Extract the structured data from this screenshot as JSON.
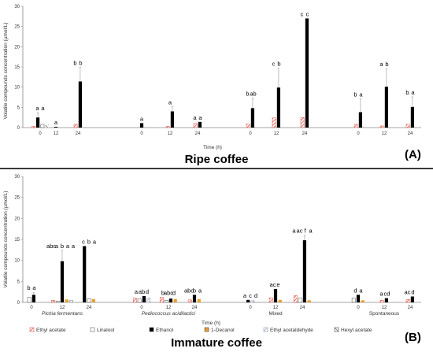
{
  "chart_data": [
    {
      "type": "bar",
      "panel_label": "(A)",
      "title": "Ripe coffee",
      "ylabel": "Volatile compounds concentration (µmol/L)",
      "xlabel": "Time (h)",
      "ylim": [
        0,
        30
      ],
      "yticks": [
        "0",
        "5",
        "10",
        "15",
        "20",
        "25",
        "30"
      ],
      "groups": [
        {
          "name": "",
          "times": [
            {
              "time": "0",
              "bars": [
                {
                  "compound": "Ethyl acetate",
                  "value": 0.3
                },
                {
                  "compound": "Ethanol",
                  "value": 2.5,
                  "err": 1.2
                },
                {
                  "compound": "Linalool",
                  "value": 0.8
                },
                {
                  "compound": "Hexyl acetate",
                  "value": 0.7
                }
              ],
              "letters": [
                "a",
                "a"
              ]
            },
            {
              "time": "12",
              "bars": [
                {
                  "compound": "Ethanol",
                  "value": 0.2
                }
              ],
              "letters": [
                "a"
              ]
            },
            {
              "time": "24",
              "bars": [
                {
                  "compound": "Ethyl acetate",
                  "value": 0.8
                },
                {
                  "compound": "Ethanol",
                  "value": 11.4,
                  "err": 3.5
                }
              ],
              "letters": [
                "b",
                "b"
              ]
            }
          ]
        },
        {
          "name": "",
          "times": [
            {
              "time": "0",
              "bars": [
                {
                  "compound": "Ethanol",
                  "value": 1.1
                }
              ],
              "letters": [
                "a"
              ]
            },
            {
              "time": "12",
              "bars": [
                {
                  "compound": "Ethyl acetate",
                  "value": 0.3
                },
                {
                  "compound": "Ethanol",
                  "value": 4.0,
                  "err": 1.2
                }
              ],
              "letters": [
                "a"
              ]
            },
            {
              "time": "24",
              "bars": [
                {
                  "compound": "Ethyl acetate",
                  "value": 1.0
                },
                {
                  "compound": "Ethanol",
                  "value": 1.4
                }
              ],
              "letters": [
                "a",
                "a"
              ]
            }
          ]
        },
        {
          "name": "",
          "times": [
            {
              "time": "0",
              "bars": [
                {
                  "compound": "Ethyl acetate",
                  "value": 0.9
                },
                {
                  "compound": "Ethanol",
                  "value": 4.8,
                  "err": 2.5
                }
              ],
              "letters": [
                "b",
                "ab"
              ]
            },
            {
              "time": "12",
              "bars": [
                {
                  "compound": "Ethyl acetate",
                  "value": 2.4
                },
                {
                  "compound": "Ethanol",
                  "value": 9.9,
                  "err": 4.8
                }
              ],
              "letters": [
                "c",
                "b"
              ]
            },
            {
              "time": "24",
              "bars": [
                {
                  "compound": "Ethyl acetate",
                  "value": 2.5
                },
                {
                  "compound": "Ethanol",
                  "value": 27.0
                }
              ],
              "letters": [
                "c",
                "c"
              ]
            }
          ]
        },
        {
          "name": "",
          "times": [
            {
              "time": "0",
              "bars": [
                {
                  "compound": "Ethyl acetate",
                  "value": 0.8
                },
                {
                  "compound": "Ethanol",
                  "value": 3.8,
                  "err": 3.3
                }
              ],
              "letters": [
                "b",
                "a"
              ]
            },
            {
              "time": "12",
              "bars": [
                {
                  "compound": "Ethyl acetate",
                  "value": 0.4
                },
                {
                  "compound": "Ethanol",
                  "value": 10.1,
                  "err": 4.5
                }
              ],
              "letters": [
                "a",
                "b"
              ]
            },
            {
              "time": "24",
              "bars": [
                {
                  "compound": "Ethyl acetate",
                  "value": 0.8
                },
                {
                  "compound": "Ethanol",
                  "value": 5.1,
                  "err": 2.5
                }
              ],
              "letters": [
                "b",
                "a"
              ]
            }
          ]
        }
      ]
    },
    {
      "type": "bar",
      "panel_label": "(B)",
      "title": "Immature coffee",
      "ylabel": "Volatile compounds concentration (µmol/L)",
      "xlabel": "Time (h)",
      "ylim": [
        0,
        30
      ],
      "yticks": [
        "0",
        "5",
        "10",
        "15",
        "20",
        "25",
        "30"
      ],
      "groups": [
        {
          "name": "Pichia fermentans",
          "times": [
            {
              "time": "0",
              "bars": [
                {
                  "compound": "Linalool",
                  "value": 1.2
                },
                {
                  "compound": "Ethanol",
                  "value": 1.8,
                  "err": 0.6
                }
              ],
              "letters": [
                "b",
                "a"
              ]
            },
            {
              "time": "12",
              "bars": [
                {
                  "compound": "Ethyl acetate",
                  "value": 0.5
                },
                {
                  "compound": "Linalool",
                  "value": 0.3
                },
                {
                  "compound": "Ethanol",
                  "value": 9.8,
                  "err": 2.6
                },
                {
                  "compound": "1-Decanol",
                  "value": 0.7
                },
                {
                  "compound": "Ethyl acetaldehyde",
                  "value": 0.5
                }
              ],
              "letters": [
                "abc",
                "a",
                "b",
                "a",
                "a"
              ]
            },
            {
              "time": "24",
              "bars": [
                {
                  "compound": "Ethanol",
                  "value": 13.4
                },
                {
                  "compound": "Linalool",
                  "value": 0.9
                },
                {
                  "compound": "1-Decanol",
                  "value": 0.8
                }
              ],
              "letters": [
                "c",
                "b",
                "a"
              ]
            }
          ]
        },
        {
          "name": "Pediococcus acidilactici",
          "times": [
            {
              "time": "0",
              "bars": [
                {
                  "compound": "Ethyl acetate",
                  "value": 1.0
                },
                {
                  "compound": "Linalool",
                  "value": 0.8
                },
                {
                  "compound": "Ethanol",
                  "value": 1.5
                },
                {
                  "compound": "Ethyl acetaldehyde",
                  "value": 1.0
                }
              ],
              "letters": [
                "a",
                "ab",
                "d"
              ]
            },
            {
              "time": "12",
              "bars": [
                {
                  "compound": "Ethyl acetate",
                  "value": 1.2
                },
                {
                  "compound": "Linalool",
                  "value": 0.5
                },
                {
                  "compound": "Ethanol",
                  "value": 0.9
                },
                {
                  "compound": "1-Decanol",
                  "value": 0.8
                }
              ],
              "letters": [
                "b",
                "abc",
                "d"
              ]
            },
            {
              "time": "24",
              "bars": [
                {
                  "compound": "Ethyl acetate",
                  "value": 0.6
                },
                {
                  "compound": "Ethanol",
                  "value": 1.8
                },
                {
                  "compound": "1-Decanol",
                  "value": 0.8
                }
              ],
              "letters": [
                "abc",
                "b",
                "a"
              ]
            }
          ]
        },
        {
          "name": "Mixed",
          "times": [
            {
              "time": "0",
              "bars": [
                {
                  "compound": "Ethanol",
                  "value": 0.6
                },
                {
                  "compound": "Ethyl acetaldehyde",
                  "value": 0.4
                }
              ],
              "letters": [
                "a",
                "c",
                "d"
              ]
            },
            {
              "time": "12",
              "bars": [
                {
                  "compound": "Ethyl acetate",
                  "value": 1.1
                },
                {
                  "compound": "Ethanol",
                  "value": 3.2
                },
                {
                  "compound": "1-Decanol",
                  "value": 0.6
                }
              ],
              "letters": [
                "ac",
                "e"
              ]
            },
            {
              "time": "24",
              "bars": [
                {
                  "compound": "Ethyl acetate",
                  "value": 1.6
                },
                {
                  "compound": "Linalool",
                  "value": 1.0
                },
                {
                  "compound": "Ethanol",
                  "value": 14.8,
                  "err": 1.2
                },
                {
                  "compound": "1-Decanol",
                  "value": 0.5
                }
              ],
              "letters": [
                "a",
                "ac",
                "f",
                "a"
              ]
            }
          ]
        },
        {
          "name": "Spontaneous",
          "times": [
            {
              "time": "0",
              "bars": [
                {
                  "compound": "Linalool",
                  "value": 1.0
                },
                {
                  "compound": "Ethanol",
                  "value": 1.8
                },
                {
                  "compound": "1-Decanol",
                  "value": 0.5
                }
              ],
              "letters": [
                "d",
                "a"
              ]
            },
            {
              "time": "12",
              "bars": [
                {
                  "compound": "Ethyl acetate",
                  "value": 0.5
                },
                {
                  "compound": "Ethanol",
                  "value": 1.0
                }
              ],
              "letters": [
                "a",
                "cd"
              ]
            },
            {
              "time": "24",
              "bars": [
                {
                  "compound": "Ethyl acetate",
                  "value": 0.7
                },
                {
                  "compound": "Ethanol",
                  "value": 1.4
                }
              ],
              "letters": [
                "ac",
                "d"
              ]
            }
          ]
        }
      ]
    }
  ],
  "legend": [
    {
      "label": "Ethyl acetate",
      "compound": "Ethyl acetate"
    },
    {
      "label": "Linalool",
      "compound": "Linalool"
    },
    {
      "label": "Ethanol",
      "compound": "Ethanol"
    },
    {
      "label": "1-Decanol",
      "compound": "1-Decanol"
    },
    {
      "label": "Ethyl acetaldehyde",
      "compound": "Ethyl acetaldehyde"
    },
    {
      "label": "Hexyl acetate",
      "compound": "Hexyl acetate"
    }
  ],
  "colors": {
    "Ethyl acetate": "#e04a3a",
    "Linalool": "#ffffff",
    "Ethanol": "#000000",
    "1-Decanol": "#e8a030",
    "Ethyl acetaldehyde": "#9aa8b8",
    "Hexyl acetate": "#333333"
  }
}
